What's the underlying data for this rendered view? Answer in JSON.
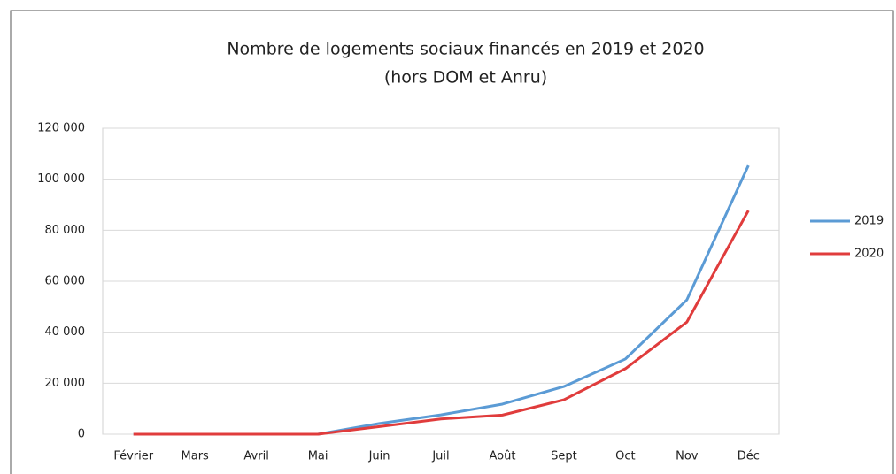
{
  "chart_data": {
    "type": "line",
    "title": "Nombre de logements sociaux financés en 2019 et 2020",
    "subtitle": "(hors DOM et Anru)",
    "categories": [
      "Février",
      "Mars",
      "Avril",
      "Mai",
      "Juin",
      "Juil",
      "Août",
      "Sept",
      "Oct",
      "Nov",
      "Déc"
    ],
    "series": [
      {
        "name": "2019",
        "color": "#5b9bd5",
        "values": [
          0,
          0,
          0,
          0,
          4200,
          7600,
          11800,
          18700,
          29500,
          52700,
          105400
        ]
      },
      {
        "name": "2020",
        "color": "#e03c3c",
        "values": [
          0,
          0,
          0,
          0,
          3000,
          6000,
          7500,
          13500,
          25700,
          44000,
          87700
        ]
      }
    ],
    "ylim": [
      0,
      120000
    ],
    "yticks": [
      {
        "value": 0,
        "label": "0"
      },
      {
        "value": 20000,
        "label": "20 000"
      },
      {
        "value": 40000,
        "label": "40 000"
      },
      {
        "value": 60000,
        "label": "60 000"
      },
      {
        "value": 80000,
        "label": "80 000"
      },
      {
        "value": 100000,
        "label": "100 000"
      },
      {
        "value": 120000,
        "label": "120 000"
      }
    ],
    "grid": true,
    "legend": "right"
  }
}
